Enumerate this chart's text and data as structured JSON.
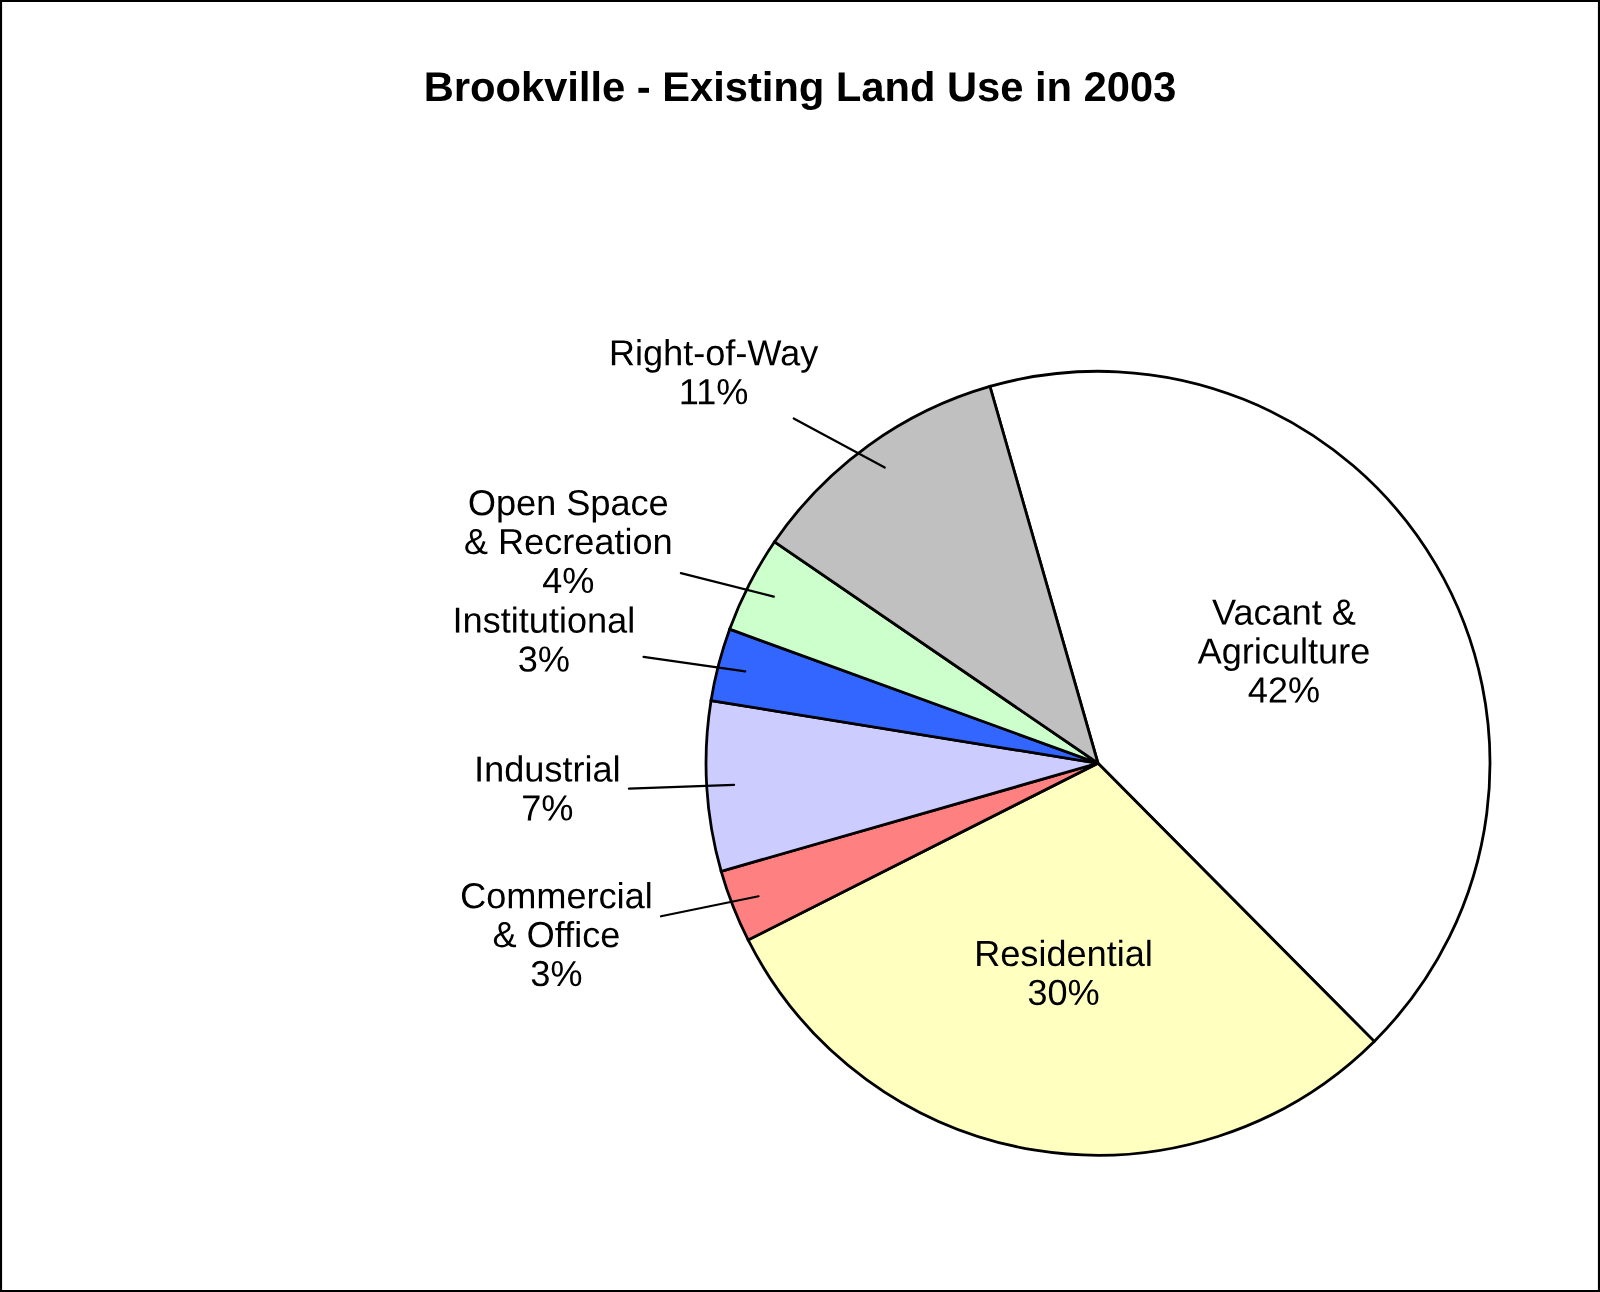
{
  "chart_data": {
    "type": "pie",
    "title": "Brookville - Existing Land Use in 2003",
    "categories": [
      "Vacant &\nAgriculture",
      "Residential",
      "Commercial\n& Office",
      "Industrial",
      "Institutional",
      "Open Space\n& Recreation",
      "Right-of-Way"
    ],
    "values": [
      42,
      30,
      3,
      7,
      3,
      4,
      11
    ],
    "value_labels": [
      "42%",
      "30%",
      "3%",
      "7%",
      "3%",
      "4%",
      "11%"
    ],
    "colors": [
      "#ffffff",
      "#ffffc0",
      "#ff8080",
      "#ccccff",
      "#3366ff",
      "#ccffcc",
      "#c0c0c0"
    ]
  }
}
